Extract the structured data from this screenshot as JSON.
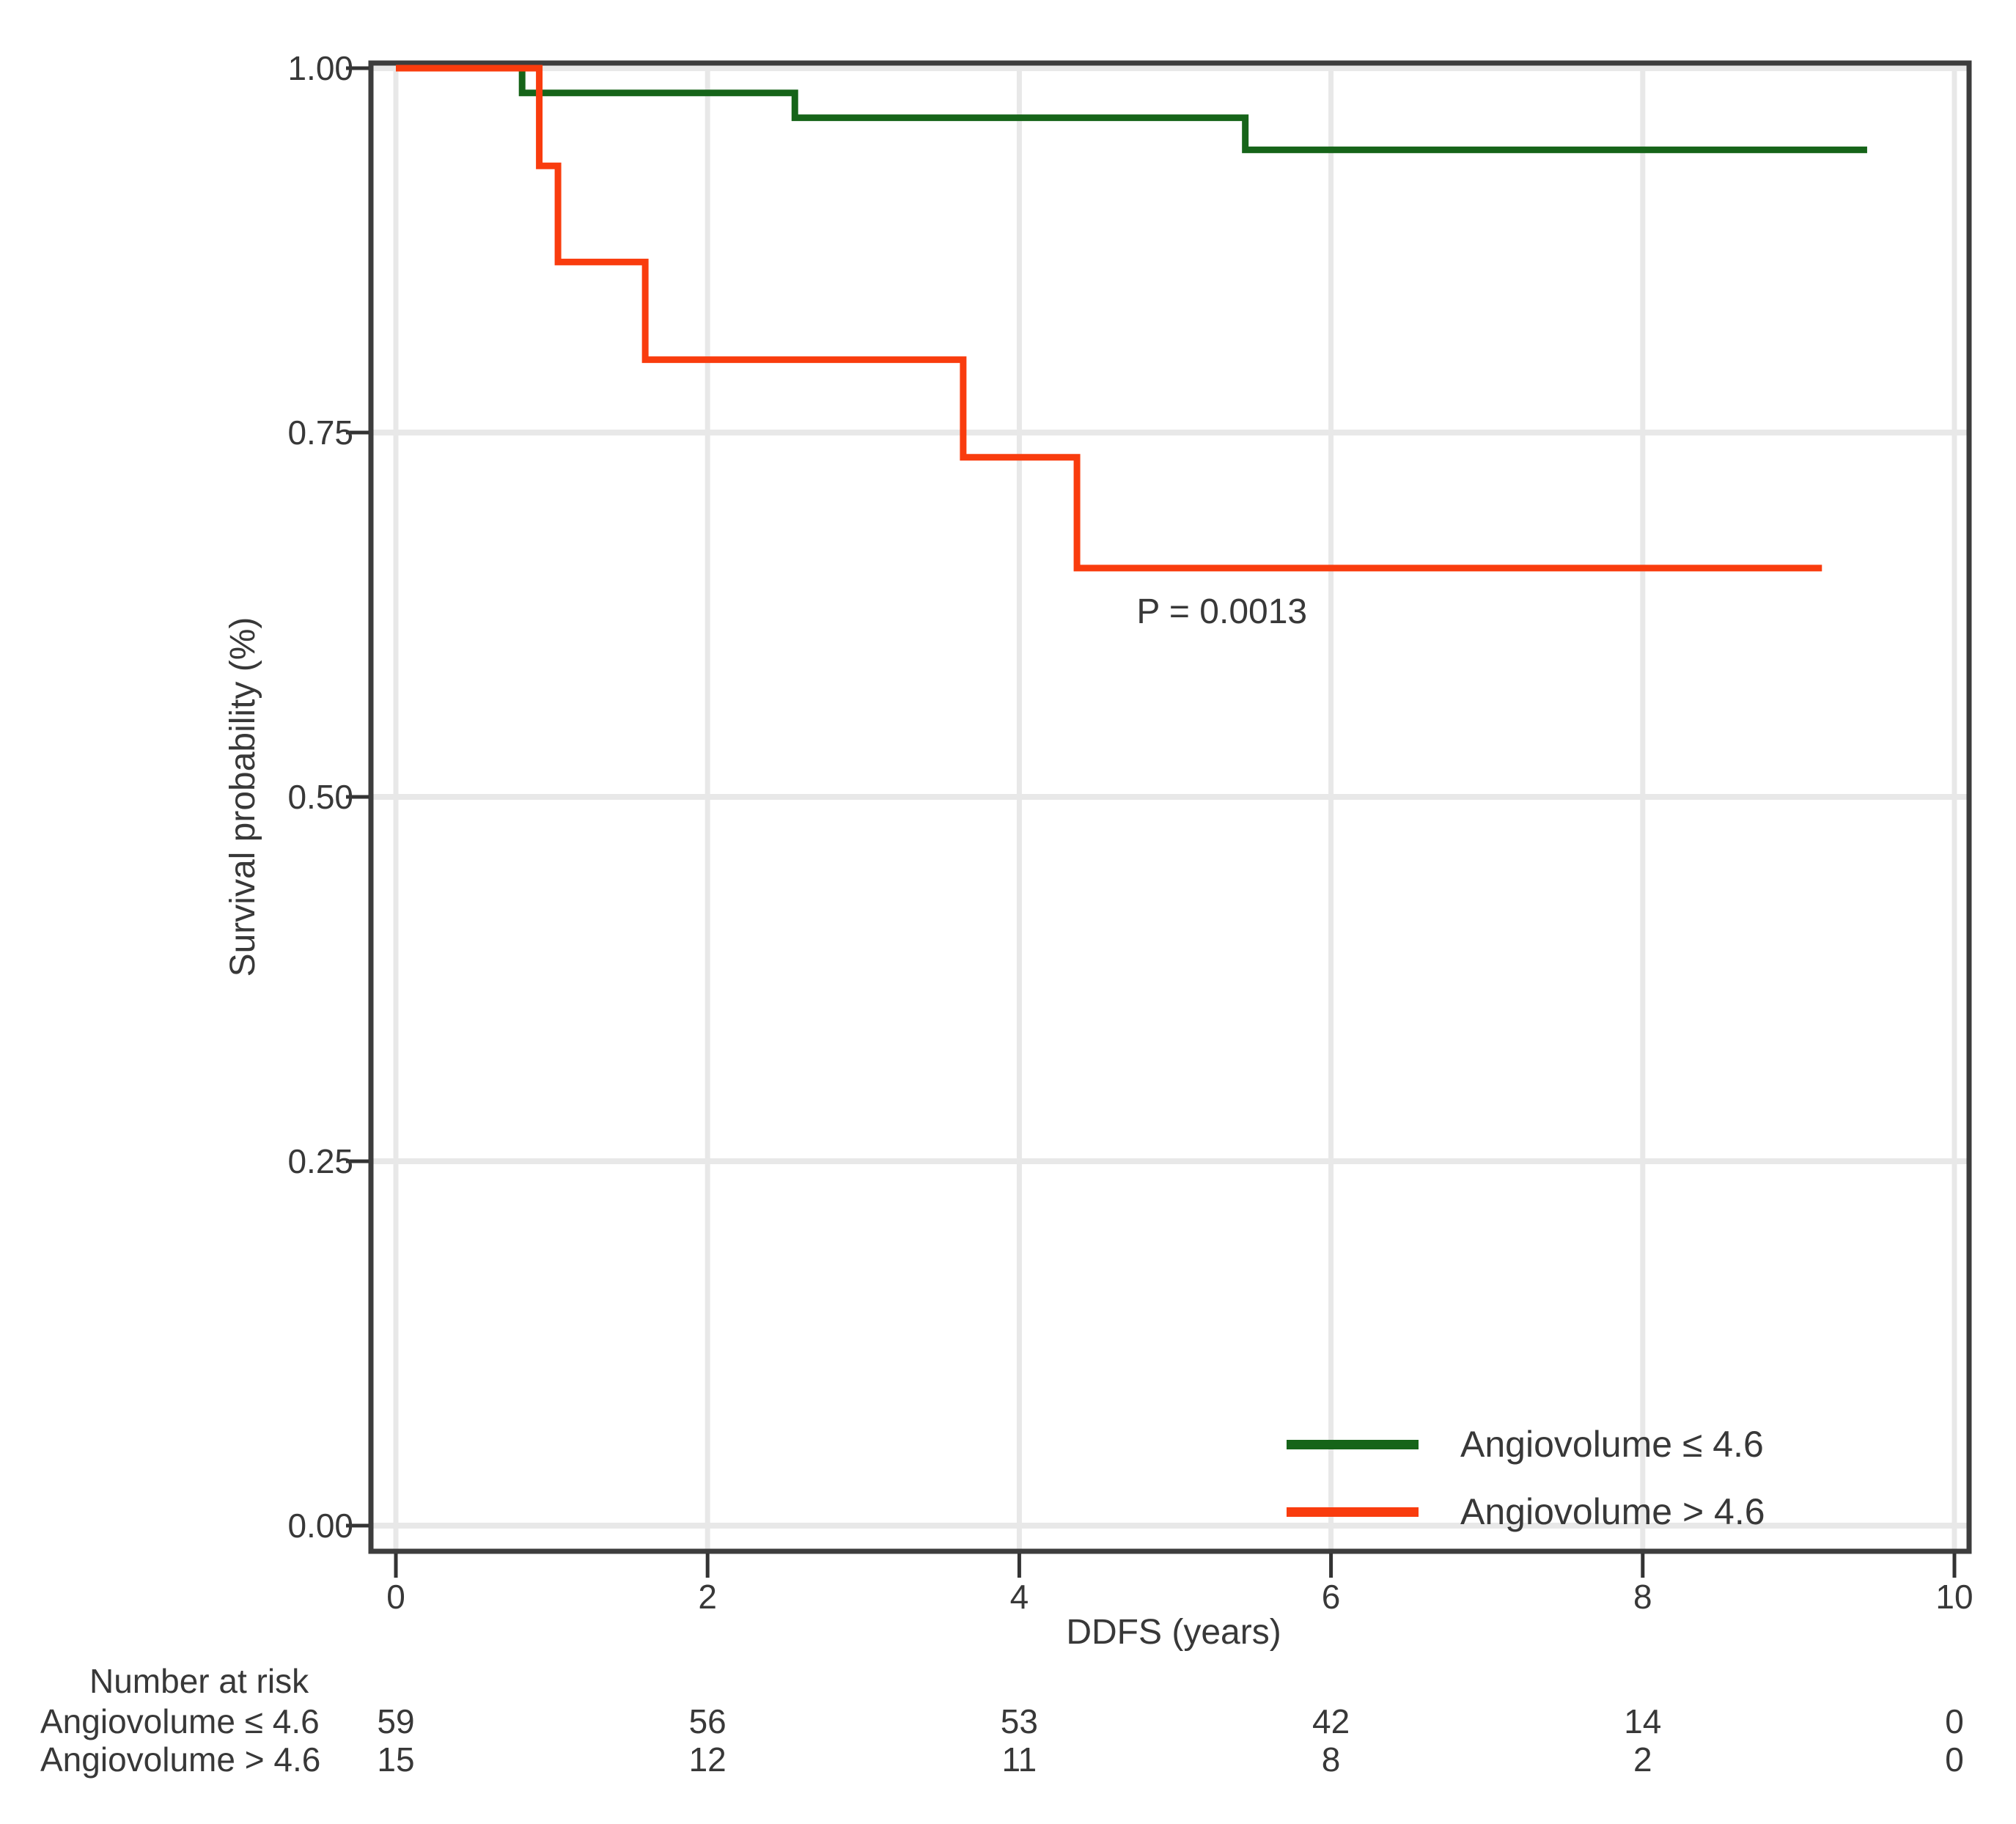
{
  "chart_data": {
    "type": "line",
    "subtype": "kaplan-meier-step",
    "title": "",
    "xlabel": "DDFS (years)",
    "ylabel": "Survival probability (%)",
    "xlim": [
      0,
      10
    ],
    "ylim": [
      0.0,
      1.0
    ],
    "grid": true,
    "xticks": [
      {
        "value": 0,
        "label": "0"
      },
      {
        "value": 2,
        "label": "2"
      },
      {
        "value": 4,
        "label": "4"
      },
      {
        "value": 6,
        "label": "6"
      },
      {
        "value": 8,
        "label": "8"
      },
      {
        "value": 10,
        "label": "10"
      }
    ],
    "yticks": [
      {
        "value": 1.0,
        "label": "1.00"
      },
      {
        "value": 0.75,
        "label": "0.75"
      },
      {
        "value": 0.5,
        "label": "0.50"
      },
      {
        "value": 0.25,
        "label": "0.25"
      },
      {
        "value": 0.0,
        "label": "0.00"
      }
    ],
    "series": [
      {
        "name": "Angiovolume ≤ 4.6",
        "color": "#166419",
        "points": [
          [
            0,
            1.0
          ],
          [
            0.81,
            0.983
          ],
          [
            2.56,
            0.966
          ],
          [
            5.45,
            0.944
          ]
        ],
        "end_x": 9.44
      },
      {
        "name": "Angiovolume > 4.6",
        "color": "#f93c0e",
        "points": [
          [
            0,
            1.0
          ],
          [
            0.92,
            0.933
          ],
          [
            1.04,
            0.867
          ],
          [
            1.6,
            0.8
          ],
          [
            3.64,
            0.733
          ],
          [
            4.37,
            0.657
          ]
        ],
        "end_x": 9.15
      }
    ],
    "annotation": {
      "text": "P = 0.0013",
      "x": 5.3,
      "y": 0.627
    },
    "legend": {
      "position": "inside-bottom-right"
    },
    "risk_table": {
      "title": "Number at risk",
      "times": [
        0,
        2,
        4,
        6,
        8,
        10
      ],
      "rows": [
        {
          "label": "Angiovolume ≤ 4.6",
          "counts": [
            "59",
            "56",
            "53",
            "42",
            "14",
            "0"
          ]
        },
        {
          "label": "Angiovolume > 4.6",
          "counts": [
            "15",
            "12",
            "11",
            "8",
            "2",
            "0"
          ]
        }
      ]
    },
    "style": {
      "grid_color": "#e8e8e8",
      "axis_color": "#3d3d3d",
      "tick_color": "#333333",
      "text_color": "#383838",
      "background": "#ffffff"
    }
  }
}
